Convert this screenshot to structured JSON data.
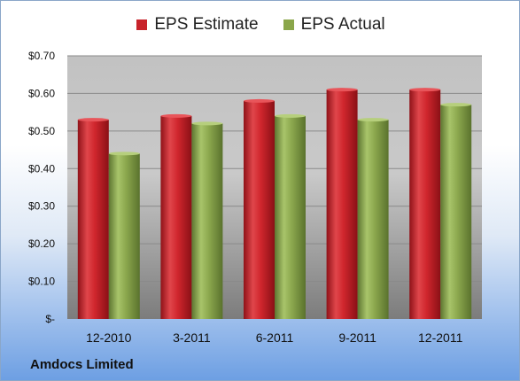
{
  "company_name": "Amdocs Limited",
  "colors": {
    "estimate": "#c8232b",
    "actual": "#8aa64a"
  },
  "chart_data": {
    "type": "bar",
    "categories": [
      "12-2010",
      "3-2011",
      "6-2011",
      "9-2011",
      "12-2011"
    ],
    "series": [
      {
        "name": "EPS Estimate",
        "values": [
          0.53,
          0.54,
          0.58,
          0.61,
          0.61
        ]
      },
      {
        "name": "EPS Actual",
        "values": [
          0.44,
          0.52,
          0.54,
          0.53,
          0.57
        ]
      }
    ],
    "yticks": [
      "$-",
      "$0.10",
      "$0.20",
      "$0.30",
      "$0.40",
      "$0.50",
      "$0.60",
      "$0.70"
    ],
    "ylim": [
      0,
      0.7
    ],
    "grid": true,
    "legend_position": "top"
  }
}
